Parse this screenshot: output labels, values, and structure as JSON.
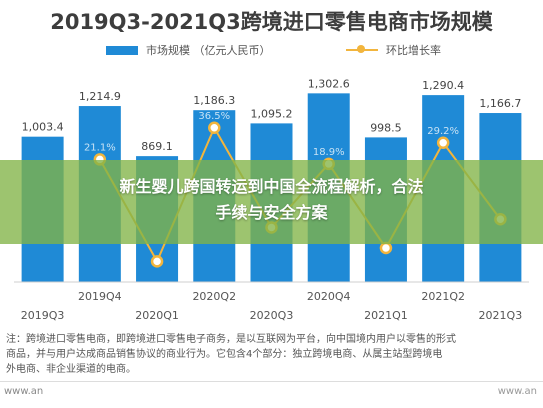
{
  "chart_data": {
    "type": "bar",
    "title": "2019Q3-2021Q3跨境进口零售电商市场规模",
    "categories": [
      "2019Q3",
      "2019Q4",
      "2020Q1",
      "2020Q2",
      "2020Q3",
      "2020Q4",
      "2021Q1",
      "2021Q2",
      "2021Q3"
    ],
    "series": [
      {
        "name": "市场规模 （亿元人民币）",
        "kind": "bar",
        "color": "#1f8ad6",
        "values": [
          1003.4,
          1214.9,
          869.1,
          1186.3,
          1095.2,
          1302.6,
          998.5,
          1290.4,
          1166.7
        ],
        "labels": [
          "1,003.4",
          "1,214.9",
          "869.1",
          "1,186.3",
          "1,095.2",
          "1,302.6",
          "998.5",
          "1,290.4",
          "1,166.7"
        ]
      },
      {
        "name": "环比增长率",
        "kind": "line",
        "color": "#f2b53d",
        "values": [
          null,
          21.1,
          -28.5,
          36.5,
          null,
          18.9,
          null,
          29.2,
          null
        ],
        "labels": [
          "",
          "21.1%",
          "",
          "36.5%",
          "",
          "18.9%",
          "",
          "29.2%",
          ""
        ]
      }
    ],
    "ylim_bar": [
      0,
      1450
    ],
    "grid": false,
    "legend": "top"
  },
  "overlay": {
    "line1": "新生婴儿跨国转运到中国全流程解析，合法",
    "line2": "手续与安全方案"
  },
  "description": {
    "line1": "注：跨境进口零售电商，即跨境进口零售电子商务，是以互联网为平台，向中国境内用户以零售的形式",
    "line2": "商品，并与用户达成商品销售协议的商业行为。它包含4个部分：独立跨境电商、从属主站型跨境电",
    "line3": "外电商、非企业渠道的电商。"
  },
  "footer": {
    "left": "www.an",
    "right": "www.an"
  }
}
